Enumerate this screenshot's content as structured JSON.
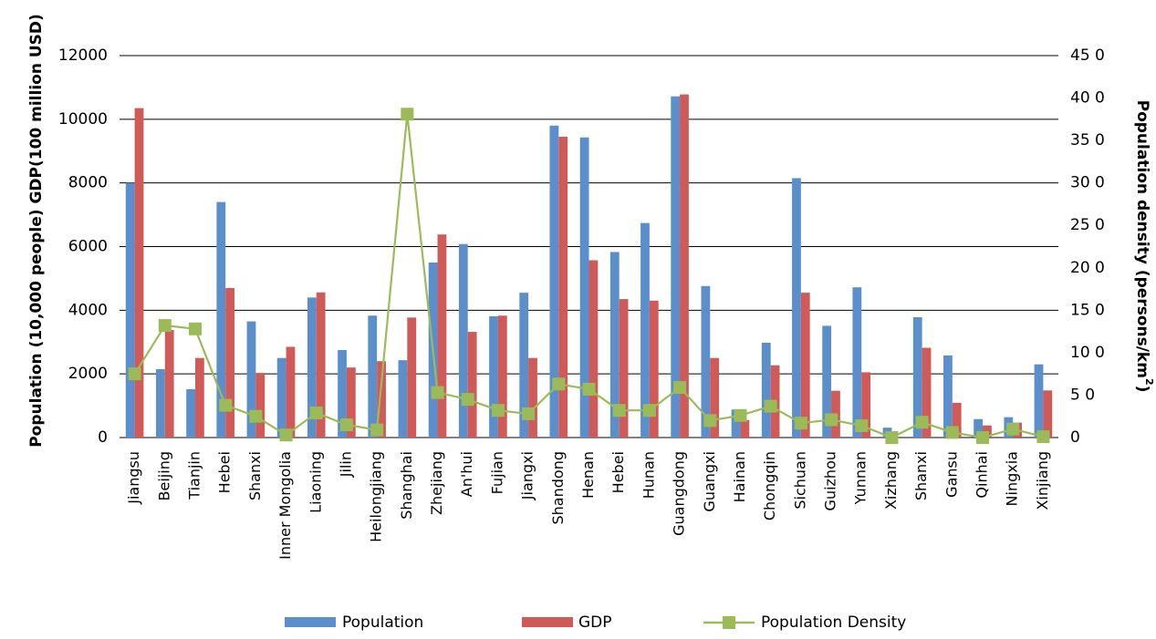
{
  "chart_data": {
    "type": "bar",
    "categories": [
      "Jiangsu",
      "Beijing",
      "Tianjin",
      "Hebei",
      "Shanxi",
      "Inner Mongolia",
      "Liaoning",
      "Jilin",
      "Heilongjiang",
      "Shanghai",
      "Zhejiang",
      "An'hui",
      "Fujian",
      "Jiangxi",
      "Shandong",
      "Henan",
      "Hebei",
      "Hunan",
      "Guangdong",
      "Guangxi",
      "Hainan",
      "Chongqin",
      "Sichuan",
      "Guizhou",
      "Yunnan",
      "Xizhang",
      "Shanxi",
      "Gansu",
      "Qinhai",
      "Ningxia",
      "Xinjiang"
    ],
    "series": [
      {
        "name": "Population",
        "type": "bar",
        "axis": "left",
        "color": "#5b8fcc",
        "values": [
          8000,
          2150,
          1520,
          7400,
          3650,
          2500,
          4400,
          2750,
          3830,
          2430,
          5500,
          6080,
          3810,
          4550,
          9800,
          9430,
          5830,
          6740,
          10720,
          4760,
          880,
          2980,
          8150,
          3510,
          4720,
          310,
          3780,
          2580,
          580,
          640,
          2300
        ]
      },
      {
        "name": "GDP",
        "type": "bar",
        "axis": "left",
        "color": "#d05a58",
        "values": [
          10350,
          3380,
          2500,
          4700,
          2030,
          2850,
          4560,
          2200,
          2400,
          3770,
          6380,
          3320,
          3830,
          2500,
          9450,
          5570,
          4350,
          4300,
          10780,
          2500,
          550,
          2270,
          4550,
          1470,
          2050,
          0,
          2820,
          1090,
          380,
          470,
          1480
        ]
      },
      {
        "name": "Population Density",
        "type": "line",
        "axis": "right",
        "color": "#9bbb59",
        "values": [
          75,
          132,
          128,
          38,
          25,
          3,
          29,
          15,
          9,
          381,
          53,
          45,
          32,
          28,
          63,
          57,
          32,
          32,
          59,
          20,
          26,
          37,
          17,
          21,
          14,
          0,
          18,
          6,
          0,
          10,
          1
        ]
      }
    ],
    "yticks_left": [
      "0",
      "2000",
      "4000",
      "6000",
      "8000",
      "10000",
      "12000"
    ],
    "yticks_right": [
      "0",
      "5 0",
      "10 0",
      "15 0",
      "20 0",
      "25 0",
      "30 0",
      "35 0",
      "40 0",
      "45 0"
    ],
    "ylim_left": [
      0,
      12000
    ],
    "ylim_right": [
      0,
      450
    ],
    "ylabel_left": "Population (10,000 people) GDP(100 million USD)",
    "ylabel_right_main": "Population density (persons/km",
    "ylabel_right_sup": "2",
    "ylabel_right_end": ")",
    "grid": true,
    "legend_position": "bottom"
  }
}
